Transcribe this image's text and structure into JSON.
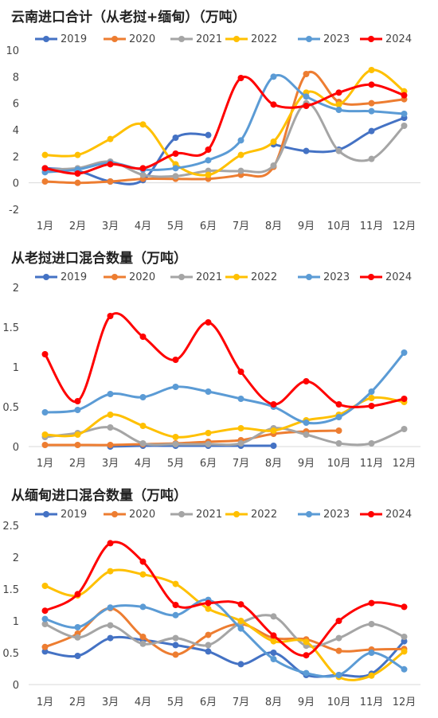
{
  "chart_data": [
    {
      "type": "line",
      "title": "云南进口合计（从老挝+缅甸）（万吨）",
      "categories": [
        "1月",
        "2月",
        "3月",
        "4月",
        "5月",
        "6月",
        "7月",
        "8月",
        "9月",
        "10月",
        "11月",
        "12月"
      ],
      "ylim": [
        -2,
        10
      ],
      "yticks": [
        -2,
        0,
        2,
        4,
        6,
        8,
        10
      ],
      "ytick_labels": [
        "-2",
        "0",
        "2",
        "4",
        "6",
        "8",
        "10"
      ],
      "grid": false,
      "legend": "top",
      "series": [
        {
          "name": "2019",
          "color": "#4472C4",
          "values": [
            1.1,
            0.9,
            0.1,
            0.2,
            3.4,
            3.6,
            null,
            2.9,
            2.4,
            2.5,
            3.9,
            4.9
          ]
        },
        {
          "name": "2020",
          "color": "#ED7D31",
          "values": [
            0.1,
            0.0,
            0.1,
            0.3,
            0.3,
            0.3,
            0.6,
            1.2,
            8.2,
            6.1,
            6.0,
            6.3
          ]
        },
        {
          "name": "2021",
          "color": "#A5A5A5",
          "values": [
            1.0,
            1.1,
            1.6,
            0.6,
            0.5,
            0.9,
            0.9,
            1.3,
            6.0,
            2.4,
            1.8,
            4.3
          ]
        },
        {
          "name": "2022",
          "color": "#FFC000",
          "values": [
            2.1,
            2.1,
            3.3,
            4.4,
            1.4,
            0.6,
            2.1,
            3.1,
            6.8,
            5.9,
            8.5,
            6.9
          ]
        },
        {
          "name": "2023",
          "color": "#5B9BD5",
          "values": [
            0.8,
            1.0,
            1.5,
            1.0,
            1.1,
            1.7,
            3.2,
            8.0,
            6.5,
            5.5,
            5.4,
            5.2
          ]
        },
        {
          "name": "2024",
          "color": "#FF0000",
          "values": [
            1.1,
            0.7,
            1.4,
            1.1,
            2.2,
            2.5,
            7.9,
            5.9,
            5.8,
            6.8,
            7.4,
            6.6
          ]
        }
      ]
    },
    {
      "type": "line",
      "title": "从老挝进口混合数量（万吨）",
      "categories": [
        "1月",
        "2月",
        "3月",
        "4月",
        "5月",
        "6月",
        "7月",
        "8月",
        "9月",
        "10月",
        "11月",
        "12月"
      ],
      "ylim": [
        0,
        2
      ],
      "yticks": [
        0,
        0.5,
        1,
        1.5,
        2
      ],
      "ytick_labels": [
        "0",
        "0.5",
        "1",
        "1.5",
        "2"
      ],
      "grid": false,
      "legend": "top",
      "series": [
        {
          "name": "2019",
          "color": "#4472C4",
          "values": [
            null,
            null,
            0.0,
            0.01,
            0.01,
            0.01,
            0.01,
            0.01,
            null,
            null,
            null,
            null
          ]
        },
        {
          "name": "2020",
          "color": "#ED7D31",
          "values": [
            0.02,
            0.02,
            0.02,
            0.03,
            0.04,
            0.06,
            0.08,
            0.16,
            0.19,
            0.2,
            null,
            null
          ]
        },
        {
          "name": "2021",
          "color": "#A5A5A5",
          "values": [
            0.12,
            0.17,
            0.24,
            0.04,
            0.03,
            0.03,
            0.04,
            0.23,
            0.15,
            0.04,
            0.04,
            0.22
          ]
        },
        {
          "name": "2022",
          "color": "#FFC000",
          "values": [
            0.15,
            0.15,
            0.4,
            0.26,
            0.12,
            0.17,
            0.23,
            0.2,
            0.33,
            0.4,
            0.61,
            0.56
          ]
        },
        {
          "name": "2023",
          "color": "#5B9BD5",
          "values": [
            0.43,
            0.46,
            0.66,
            0.62,
            0.75,
            0.69,
            0.6,
            0.5,
            0.3,
            0.37,
            0.69,
            1.18
          ]
        },
        {
          "name": "2024",
          "color": "#FF0000",
          "values": [
            1.16,
            0.57,
            1.64,
            1.38,
            1.09,
            1.56,
            0.94,
            0.53,
            0.82,
            0.53,
            0.51,
            0.6
          ]
        }
      ]
    },
    {
      "type": "line",
      "title": "从缅甸进口混合数量（万吨）",
      "categories": [
        "1月",
        "2月",
        "3月",
        "4月",
        "5月",
        "6月",
        "7月",
        "8月",
        "9月",
        "10月",
        "11月",
        "12月"
      ],
      "ylim": [
        0,
        2.5
      ],
      "yticks": [
        0,
        0.5,
        1,
        1.5,
        2,
        2.5
      ],
      "ytick_labels": [
        "0",
        "0.5",
        "1",
        "1.5",
        "2",
        "2.5"
      ],
      "grid": false,
      "legend": "top",
      "series": [
        {
          "name": "2019",
          "color": "#4472C4",
          "values": [
            0.52,
            0.45,
            0.73,
            0.7,
            0.62,
            0.52,
            0.32,
            0.5,
            0.15,
            0.15,
            0.17,
            0.68
          ]
        },
        {
          "name": "2020",
          "color": "#ED7D31",
          "values": [
            0.59,
            0.8,
            1.2,
            0.75,
            0.47,
            0.78,
            0.95,
            0.73,
            0.71,
            0.53,
            0.55,
            0.56
          ]
        },
        {
          "name": "2021",
          "color": "#A5A5A5",
          "values": [
            0.95,
            0.74,
            0.93,
            0.64,
            0.73,
            0.62,
            0.97,
            1.07,
            0.61,
            0.73,
            0.95,
            0.75
          ]
        },
        {
          "name": "2022",
          "color": "#FFC000",
          "values": [
            1.55,
            1.4,
            1.78,
            1.73,
            1.58,
            1.19,
            1.0,
            0.68,
            0.67,
            0.12,
            0.14,
            0.52
          ]
        },
        {
          "name": "2023",
          "color": "#5B9BD5",
          "values": [
            1.03,
            0.9,
            1.21,
            1.22,
            1.09,
            1.33,
            0.88,
            0.4,
            0.18,
            0.15,
            0.5,
            0.24
          ]
        },
        {
          "name": "2024",
          "color": "#FF0000",
          "values": [
            1.16,
            1.42,
            2.22,
            1.93,
            1.25,
            1.28,
            1.26,
            0.77,
            0.46,
            1.0,
            1.28,
            1.22
          ]
        }
      ]
    }
  ]
}
